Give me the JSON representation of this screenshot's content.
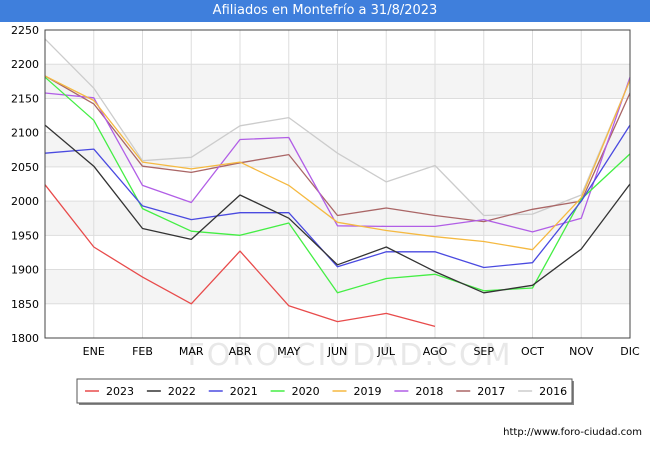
{
  "title": "Afiliados en Montefrío a 31/8/2023",
  "source_text": "http://www.foro-ciudad.com",
  "watermark": "FORO-CIUDAD.COM",
  "chart_data": {
    "type": "line",
    "title": "Afiliados en Montefrío a 31/8/2023",
    "categories": [
      "",
      "ENE",
      "FEB",
      "MAR",
      "ABR",
      "MAY",
      "JUN",
      "JUL",
      "AGO",
      "SEP",
      "OCT",
      "NOV",
      "DIC"
    ],
    "ylim": [
      1800,
      2250
    ],
    "yticks": [
      1800,
      1850,
      1900,
      1950,
      2000,
      2050,
      2100,
      2150,
      2200,
      2250
    ],
    "grid": true,
    "legend_position": "bottom",
    "series": [
      {
        "name": "2023",
        "color": "#e84b4b",
        "values": [
          2024,
          1933,
          1889,
          1850,
          1927,
          1847,
          1824,
          1836,
          1817,
          null,
          null,
          null,
          null
        ]
      },
      {
        "name": "2022",
        "color": "#333333",
        "values": [
          2111,
          2051,
          1960,
          1944,
          2009,
          1975,
          1907,
          1933,
          1897,
          1866,
          1877,
          1930,
          2025
        ]
      },
      {
        "name": "2021",
        "color": "#4a4ae0",
        "values": [
          2070,
          2076,
          1993,
          1973,
          1983,
          1983,
          1904,
          1926,
          1926,
          1903,
          1910,
          2000,
          2111
        ]
      },
      {
        "name": "2020",
        "color": "#44ee44",
        "values": [
          2181,
          2118,
          1989,
          1956,
          1950,
          1968,
          1866,
          1887,
          1893,
          1869,
          1873,
          2003,
          2069
        ]
      },
      {
        "name": "2019",
        "color": "#f5b941",
        "values": [
          2183,
          2147,
          2057,
          2047,
          2057,
          2023,
          1969,
          1957,
          1948,
          1941,
          1929,
          2005,
          2177
        ]
      },
      {
        "name": "2018",
        "color": "#b15ee6",
        "values": [
          2158,
          2151,
          2023,
          1998,
          2090,
          2093,
          1964,
          1963,
          1963,
          1973,
          1955,
          1975,
          2181
        ]
      },
      {
        "name": "2017",
        "color": "#aa6666",
        "values": [
          2183,
          2142,
          2051,
          2042,
          2056,
          2068,
          1979,
          1990,
          1979,
          1970,
          1988,
          2000,
          2158
        ]
      },
      {
        "name": "2016",
        "color": "#cccccc",
        "values": [
          2237,
          2165,
          2059,
          2064,
          2110,
          2122,
          2070,
          2028,
          2052,
          1979,
          1981,
          2009,
          2177
        ]
      }
    ]
  }
}
